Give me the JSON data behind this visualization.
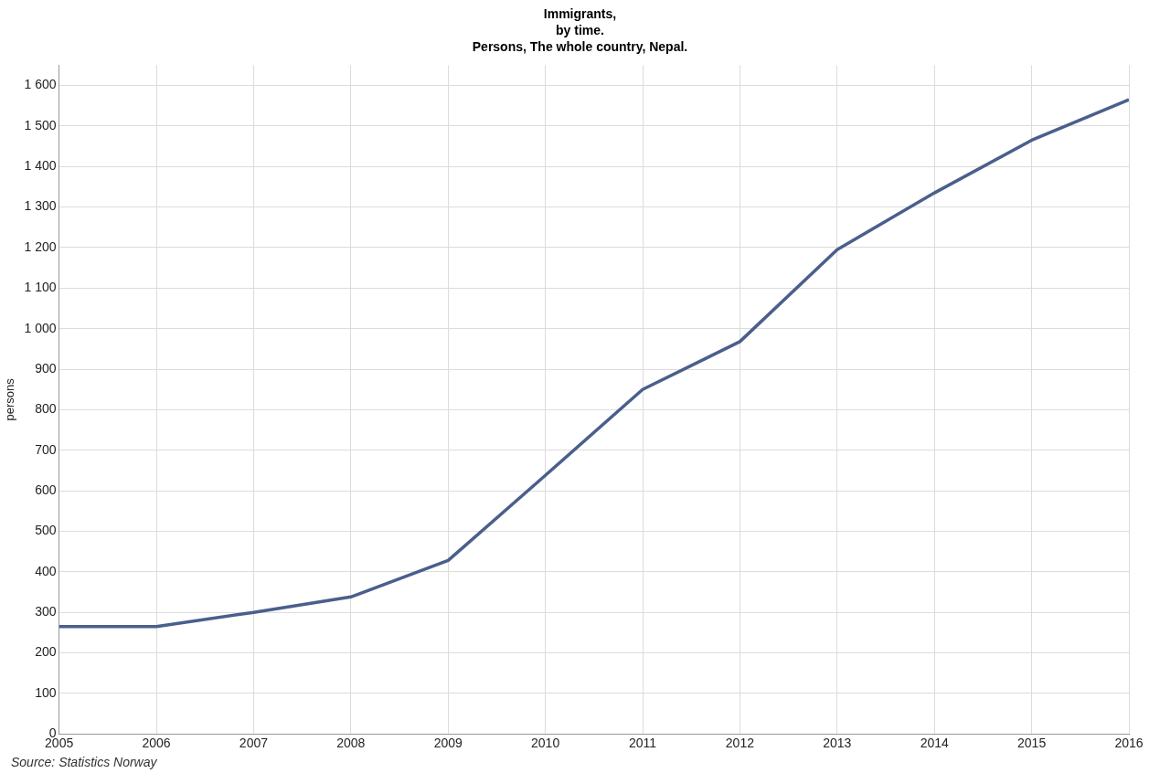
{
  "chart_data": {
    "type": "line",
    "title": "Immigrants,\nby time.\nPersons, The whole country, Nepal.",
    "ylabel": "persons",
    "x": [
      2005,
      2006,
      2007,
      2008,
      2009,
      2010,
      2011,
      2012,
      2013,
      2014,
      2015,
      2016
    ],
    "series": [
      {
        "color": "#4a5f8c",
        "values": [
          265,
          265,
          300,
          338,
          428,
          638,
          850,
          968,
          1195,
          1335,
          1465,
          1565
        ]
      }
    ],
    "xlim": [
      2005,
      2016
    ],
    "xticks": [
      2005,
      2006,
      2007,
      2008,
      2009,
      2010,
      2011,
      2012,
      2013,
      2014,
      2015,
      2016
    ],
    "ylim": [
      0,
      1650
    ],
    "yticks": [
      0,
      100,
      200,
      300,
      400,
      500,
      600,
      700,
      800,
      900,
      {
        "value": 1000,
        "label": "1 000"
      },
      {
        "value": 1100,
        "label": "1 100"
      },
      {
        "value": 1200,
        "label": "1 200"
      },
      {
        "value": 1300,
        "label": "1 300"
      },
      {
        "value": 1400,
        "label": "1 400"
      },
      {
        "value": 1500,
        "label": "1 500"
      },
      {
        "value": 1600,
        "label": "1 600"
      }
    ],
    "grid": true,
    "legend": false,
    "marker": "none",
    "line_style": "solid",
    "annotations": [
      "Source: Statistics Norway"
    ]
  }
}
